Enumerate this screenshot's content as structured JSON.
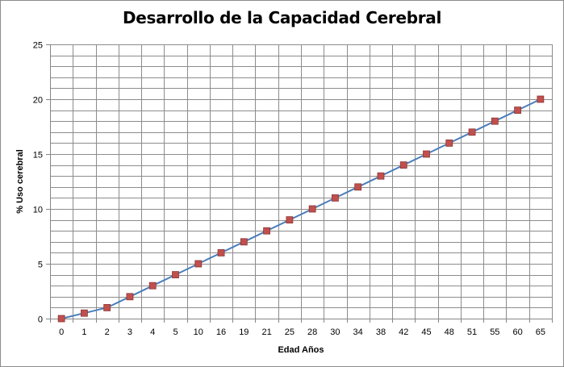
{
  "chart_data": {
    "type": "line",
    "title": "Desarrollo de la Capacidad Cerebral",
    "xlabel": "Edad Años",
    "ylabel": "% Uso cerebral",
    "categories": [
      "0",
      "1",
      "2",
      "3",
      "4",
      "5",
      "10",
      "16",
      "19",
      "21",
      "25",
      "28",
      "30",
      "34",
      "38",
      "42",
      "45",
      "48",
      "51",
      "55",
      "60",
      "65"
    ],
    "series": [
      {
        "values": [
          0,
          0.5,
          1,
          2,
          3,
          4,
          5,
          6,
          7,
          8,
          9,
          10,
          11,
          12,
          13,
          14,
          15,
          16,
          17,
          18,
          19,
          20
        ]
      }
    ],
    "ylim": [
      0,
      25
    ],
    "yticks": [
      "0",
      "5",
      "10",
      "15",
      "20",
      "25"
    ],
    "ystep_minor": 1,
    "grid": true,
    "legend": "none",
    "colors": {
      "line": "#4a7ebb",
      "marker": "#c0504d",
      "marker_edge": "#8c3836",
      "grid": "#8c8c8c"
    }
  }
}
